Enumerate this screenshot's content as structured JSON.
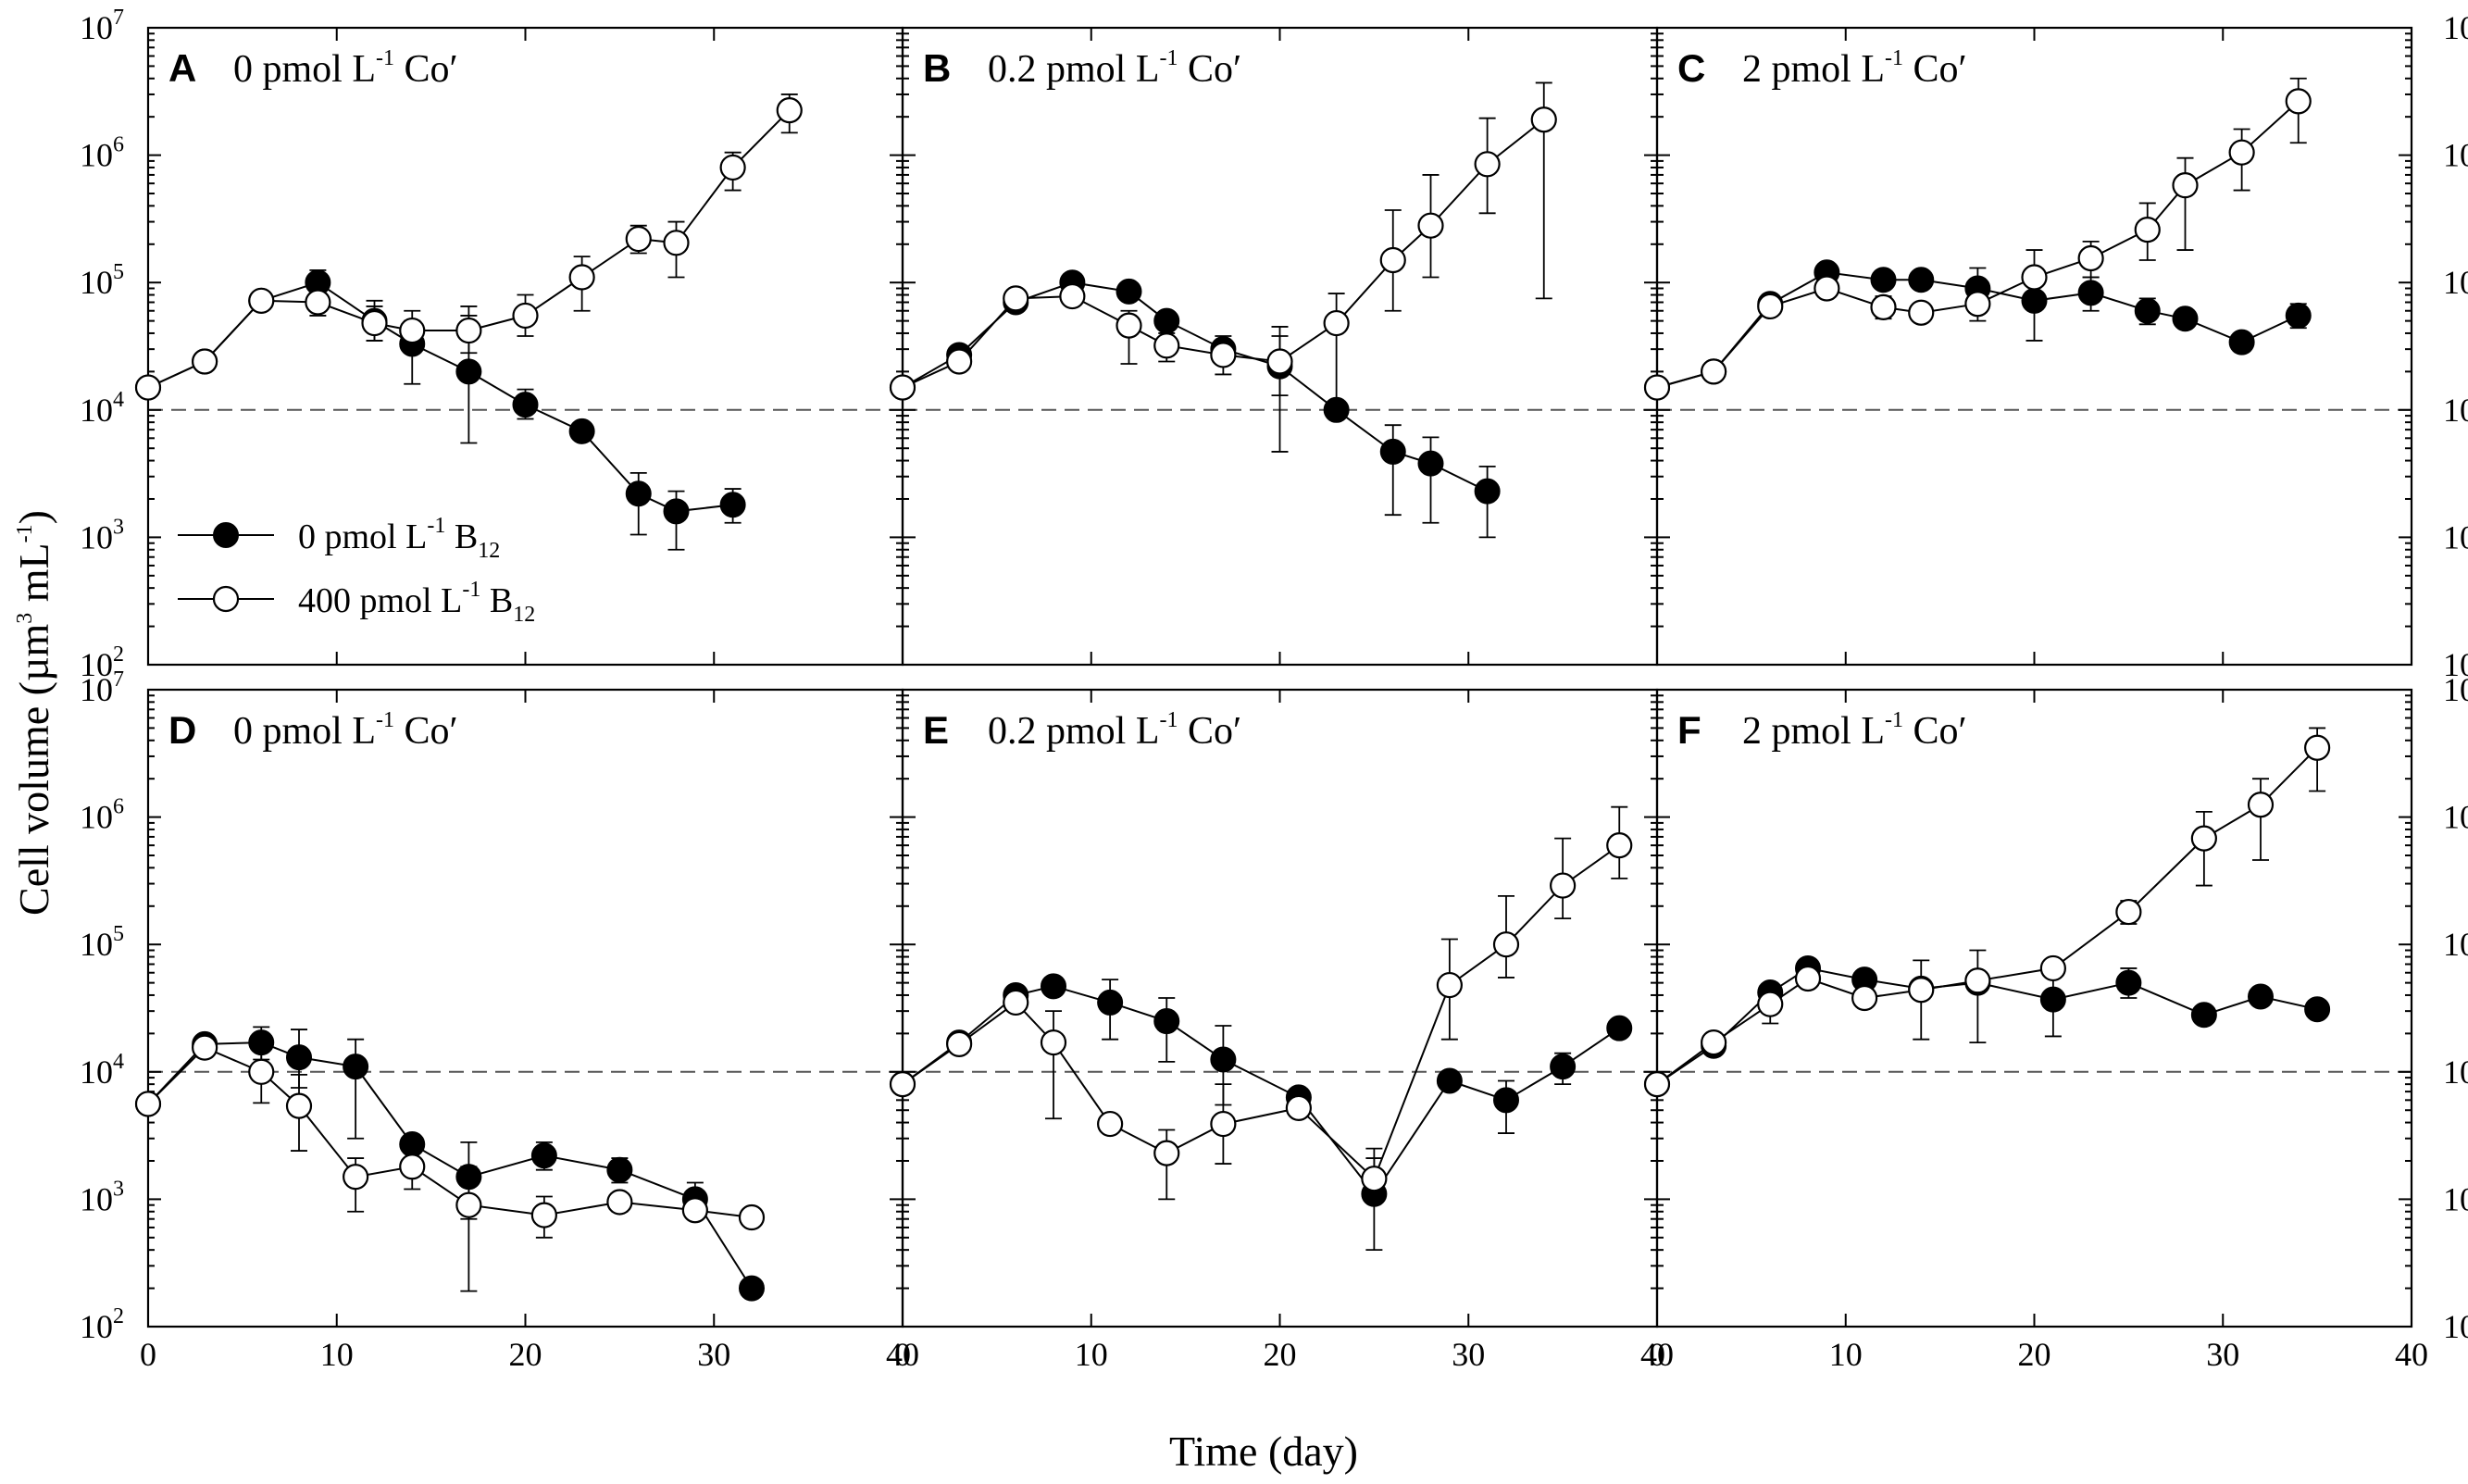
{
  "chart_data": {
    "type": "line",
    "ylabel_parts": {
      "main": "Cell volume (µm",
      "exp1": "3",
      "mid": " mL",
      "exp2": "-1",
      "end": ")"
    },
    "xlabel": "Time (day)",
    "x_ticks": [
      "0",
      "10",
      "20",
      "30",
      "40"
    ],
    "x_tick_values": [
      0,
      10,
      20,
      30,
      40
    ],
    "y_tick_base": "10",
    "y_tick_exponents": [
      "2",
      "3",
      "4",
      "5",
      "6",
      "7"
    ],
    "xlim": [
      0,
      40
    ],
    "ylim_log10": [
      2,
      7
    ],
    "reference_line_y": 10000,
    "legend": [
      {
        "symbol": "filled",
        "prefix": "0 pmol  L",
        "sup": "-1",
        "mid": " B",
        "sub": "12"
      },
      {
        "symbol": "open",
        "prefix": "400 pmol  L",
        "sup": "-1",
        "mid": " B",
        "sub": "12"
      }
    ],
    "panels": [
      {
        "letter": "A",
        "title_prefix": "0 pmol L",
        "title_sup": "-1",
        "title_suffix": " Co′",
        "series": [
          {
            "name": "0 pmol L-1 B12",
            "style": "filled",
            "x": [
              0,
              3,
              6,
              9,
              12,
              14,
              17,
              20,
              23,
              26,
              28,
              31
            ],
            "y": [
              15000,
              24000,
              72000,
              100000,
              50000,
              33000,
              20000,
              11000,
              6800,
              2200,
              1600,
              1800
            ],
            "err_hi": [
              16500,
              26000,
              78000,
              125000,
              72000,
              50000,
              55000,
              14500,
              7500,
              3200,
              2300,
              2400
            ],
            "err_lo": [
              13500,
              22000,
              66000,
              82000,
              35000,
              16000,
              5500,
              8500,
              6200,
              1050,
              800,
              1300
            ]
          },
          {
            "name": "400 pmol L-1 B12",
            "style": "open",
            "x": [
              0,
              3,
              6,
              9,
              12,
              14,
              17,
              20,
              23,
              26,
              28,
              31,
              34
            ],
            "y": [
              15000,
              24000,
              72000,
              70000,
              48000,
              42000,
              42000,
              55000,
              110000,
              220000,
              205000,
              800000,
              2250000
            ],
            "err_hi": [
              16500,
              26000,
              78000,
              90000,
              65000,
              60000,
              65000,
              80000,
              160000,
              280000,
              300000,
              1050000,
              3000000
            ],
            "err_lo": [
              13500,
              22000,
              66000,
              55000,
              35000,
              30000,
              28000,
              38000,
              60000,
              170000,
              110000,
              530000,
              1500000
            ]
          }
        ]
      },
      {
        "letter": "B",
        "title_prefix": "0.2 pmol L",
        "title_sup": "-1",
        "title_suffix": " Co′",
        "series": [
          {
            "name": "0 pmol L-1 B12",
            "style": "filled",
            "x": [
              0,
              3,
              6,
              9,
              12,
              14,
              17,
              20,
              23,
              26,
              28,
              31
            ],
            "y": [
              15000,
              27000,
              70000,
              100000,
              85000,
              50000,
              30000,
              22000,
              10000,
              4700,
              3800,
              2300
            ],
            "err_hi": [
              16500,
              29000,
              76000,
              108000,
              92000,
              55000,
              38000,
              38000,
              11000,
              7600,
              6100,
              3600
            ],
            "err_lo": [
              13500,
              25000,
              64000,
              92000,
              78000,
              45000,
              24000,
              13000,
              9000,
              1500,
              1300,
              1000
            ]
          },
          {
            "name": "400 pmol L-1 B12",
            "style": "open",
            "x": [
              0,
              3,
              6,
              9,
              12,
              14,
              17,
              20,
              23,
              26,
              28,
              31,
              34
            ],
            "y": [
              15000,
              24000,
              75000,
              78000,
              46000,
              32000,
              27000,
              24000,
              48000,
              150000,
              280000,
              850000,
              1900000
            ],
            "err_hi": [
              16500,
              26000,
              80000,
              85000,
              60000,
              40000,
              35000,
              45000,
              82000,
              370000,
              700000,
              1950000,
              3700000
            ],
            "err_lo": [
              13500,
              22000,
              70000,
              70000,
              23000,
              24000,
              19000,
              4700,
              9000,
              60000,
              110000,
              350000,
              75000
            ]
          }
        ]
      },
      {
        "letter": "C",
        "title_prefix": "2 pmol L",
        "title_sup": "-1",
        "title_suffix": " Co′",
        "series": [
          {
            "name": "0 pmol L-1 B12",
            "style": "filled",
            "x": [
              0,
              3,
              6,
              9,
              12,
              14,
              17,
              20,
              23,
              26,
              28,
              31,
              34
            ],
            "y": [
              15000,
              20000,
              68000,
              120000,
              105000,
              105000,
              90000,
              72000,
              83000,
              60000,
              52000,
              34000,
              55000
            ],
            "err_hi": [
              16500,
              22000,
              75000,
              135000,
              115000,
              115000,
              130000,
              110000,
              110000,
              75000,
              58000,
              38000,
              68000
            ],
            "err_lo": [
              13500,
              18000,
              61000,
              105000,
              95000,
              95000,
              62000,
              35000,
              60000,
              47000,
              46000,
              30000,
              44000
            ]
          },
          {
            "name": "400 pmol L-1 B12",
            "style": "open",
            "x": [
              0,
              3,
              6,
              9,
              12,
              14,
              17,
              20,
              23,
              26,
              28,
              31,
              34
            ],
            "y": [
              15000,
              20000,
              65000,
              90000,
              64000,
              58000,
              68000,
              110000,
              155000,
              260000,
              580000,
              1050000,
              2650000
            ],
            "err_hi": [
              16500,
              22000,
              71000,
              100000,
              78000,
              64000,
              80000,
              180000,
              210000,
              420000,
              950000,
              1600000,
              4000000
            ],
            "err_lo": [
              13500,
              18000,
              59000,
              80000,
              52000,
              52000,
              50000,
              65000,
              110000,
              150000,
              180000,
              530000,
              1250000
            ]
          }
        ]
      },
      {
        "letter": "D",
        "title_prefix": "0 pmol L",
        "title_sup": "-1",
        "title_suffix": " Co′",
        "series": [
          {
            "name": "0 pmol L-1 B12",
            "style": "filled",
            "x": [
              0,
              3,
              6,
              8,
              11,
              14,
              17,
              21,
              25,
              29,
              32
            ],
            "y": [
              5600,
              16500,
              17000,
              13000,
              11000,
              2700,
              1500,
              2200,
              1700,
              1000,
              200
            ],
            "err_hi": [
              6100,
              18000,
              22500,
              21500,
              18000,
              2900,
              2800,
              2800,
              2100,
              1350,
              215
            ],
            "err_lo": [
              5100,
              15000,
              12500,
              7500,
              3000,
              2500,
              700,
              1700,
              1350,
              700,
              185
            ]
          },
          {
            "name": "400 pmol L-1 B12",
            "style": "open",
            "x": [
              0,
              3,
              6,
              8,
              11,
              14,
              17,
              21,
              25,
              29,
              32
            ],
            "y": [
              5600,
              15500,
              10000,
              5400,
              1500,
              1800,
              900,
              750,
              950,
              820,
              720
            ],
            "err_hi": [
              6100,
              17000,
              16000,
              9500,
              2100,
              2500,
              1800,
              1050,
              1100,
              900,
              800
            ],
            "err_lo": [
              5100,
              14000,
              5700,
              2400,
              800,
              1200,
              190,
              500,
              800,
              700,
              640
            ]
          }
        ]
      },
      {
        "letter": "E",
        "title_prefix": "0.2 pmol L",
        "title_sup": "-1",
        "title_suffix": " Co′",
        "series": [
          {
            "name": "0 pmol L-1 B12",
            "style": "filled",
            "x": [
              0,
              3,
              6,
              8,
              11,
              14,
              17,
              21,
              25,
              29,
              32,
              35,
              38
            ],
            "y": [
              8000,
              17000,
              40000,
              47000,
              35000,
              25000,
              12500,
              6300,
              1100,
              8500,
              6000,
              11000,
              22000
            ],
            "err_hi": [
              8800,
              18700,
              45000,
              51000,
              53000,
              38000,
              23000,
              7000,
              2100,
              9300,
              8500,
              14000,
              24000
            ],
            "err_lo": [
              7200,
              15300,
              35000,
              43000,
              18000,
              12000,
              5500,
              5700,
              400,
              7700,
              3300,
              8000,
              20000
            ]
          },
          {
            "name": "400 pmol L-1 B12",
            "style": "open",
            "x": [
              0,
              3,
              6,
              8,
              11,
              14,
              17,
              21,
              25,
              29,
              32,
              35,
              38
            ],
            "y": [
              8000,
              16500,
              35000,
              17000,
              3900,
              2300,
              3900,
              5200,
              1450,
              48000,
              100000,
              290000,
              600000
            ],
            "err_hi": [
              8800,
              18000,
              38000,
              30000,
              4300,
              3500,
              8000,
              5800,
              2500,
              110000,
              240000,
              680000,
              1200000
            ],
            "err_lo": [
              7200,
              15000,
              32000,
              4300,
              3500,
              1000,
              1900,
              4600,
              1200,
              18000,
              55000,
              160000,
              330000
            ]
          }
        ]
      },
      {
        "letter": "F",
        "title_prefix": "2 pmol L",
        "title_sup": "-1",
        "title_suffix": " Co′",
        "series": [
          {
            "name": "0 pmol L-1 B12",
            "style": "filled",
            "x": [
              0,
              3,
              6,
              8,
              11,
              14,
              17,
              21,
              25,
              29,
              32,
              35
            ],
            "y": [
              8000,
              16000,
              42000,
              65000,
              53000,
              45000,
              50000,
              37000,
              50000,
              28000,
              39000,
              31000
            ],
            "err_hi": [
              8800,
              17600,
              46000,
              70000,
              58000,
              50000,
              55000,
              55000,
              65000,
              31000,
              43000,
              34000
            ],
            "err_lo": [
              7200,
              14400,
              38000,
              60000,
              48000,
              40000,
              45000,
              19000,
              38000,
              25000,
              35000,
              28000
            ]
          },
          {
            "name": "400 pmol L-1 B12",
            "style": "open",
            "x": [
              0,
              3,
              6,
              8,
              11,
              14,
              17,
              21,
              25,
              29,
              32,
              35
            ],
            "y": [
              8000,
              17000,
              34000,
              54000,
              38000,
              44000,
              52000,
              65000,
              180000,
              680000,
              1250000,
              3500000
            ],
            "err_hi": [
              8800,
              18700,
              40000,
              60000,
              45000,
              75000,
              90000,
              72000,
              220000,
              1100000,
              2000000,
              5000000
            ],
            "err_lo": [
              7200,
              15300,
              24000,
              48000,
              33000,
              18000,
              17000,
              58000,
              145000,
              290000,
              460000,
              1600000
            ]
          }
        ]
      }
    ]
  }
}
